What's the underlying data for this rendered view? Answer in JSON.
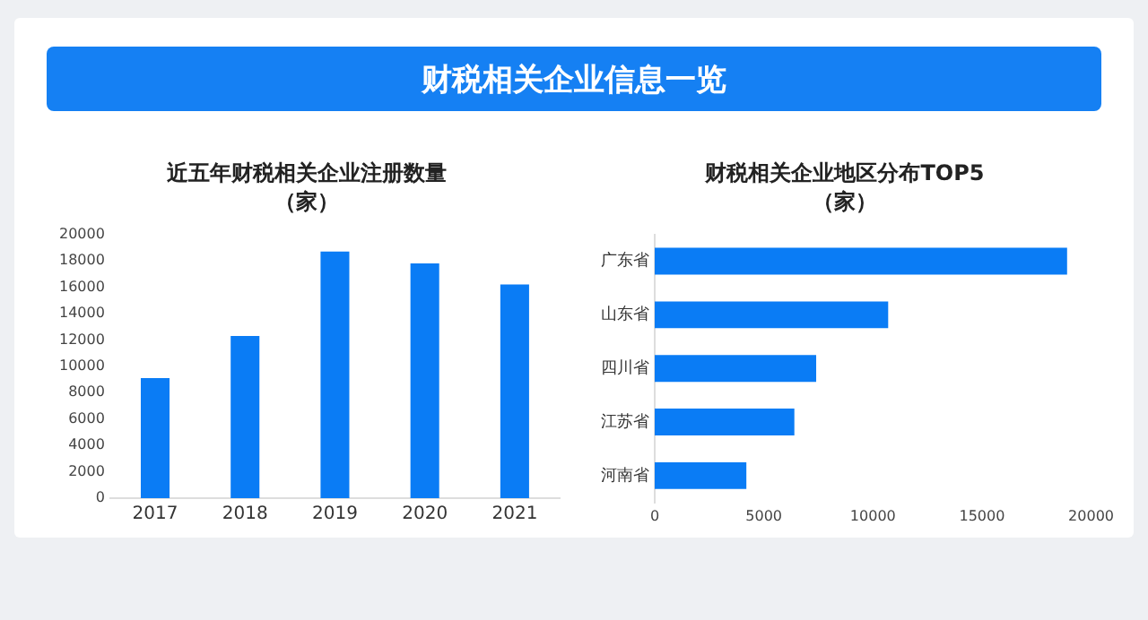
{
  "chart_data": [
    {
      "type": "other",
      "title": "财税相关企业信息一览"
    },
    {
      "type": "bar",
      "title": "近五年财税相关企业注册数量",
      "subtitle": "（家）",
      "categories": [
        "2017",
        "2018",
        "2019",
        "2020",
        "2021"
      ],
      "values": [
        9100,
        12300,
        18700,
        17800,
        16200
      ],
      "color": "#0a7cf5",
      "ylim": [
        0,
        20000
      ],
      "yticks": [
        0,
        2000,
        4000,
        6000,
        8000,
        10000,
        12000,
        14000,
        16000,
        18000,
        20000
      ]
    },
    {
      "type": "bar",
      "orientation": "horizontal",
      "title": "财税相关企业地区分布TOP5",
      "subtitle": "（家）",
      "categories": [
        "广东省",
        "山东省",
        "四川省",
        "江苏省",
        "河南省"
      ],
      "values": [
        18900,
        10700,
        7400,
        6400,
        4200
      ],
      "color": "#0a7cf5",
      "xlim": [
        0,
        20000
      ],
      "xticks": [
        0,
        5000,
        10000,
        15000,
        20000
      ]
    }
  ]
}
